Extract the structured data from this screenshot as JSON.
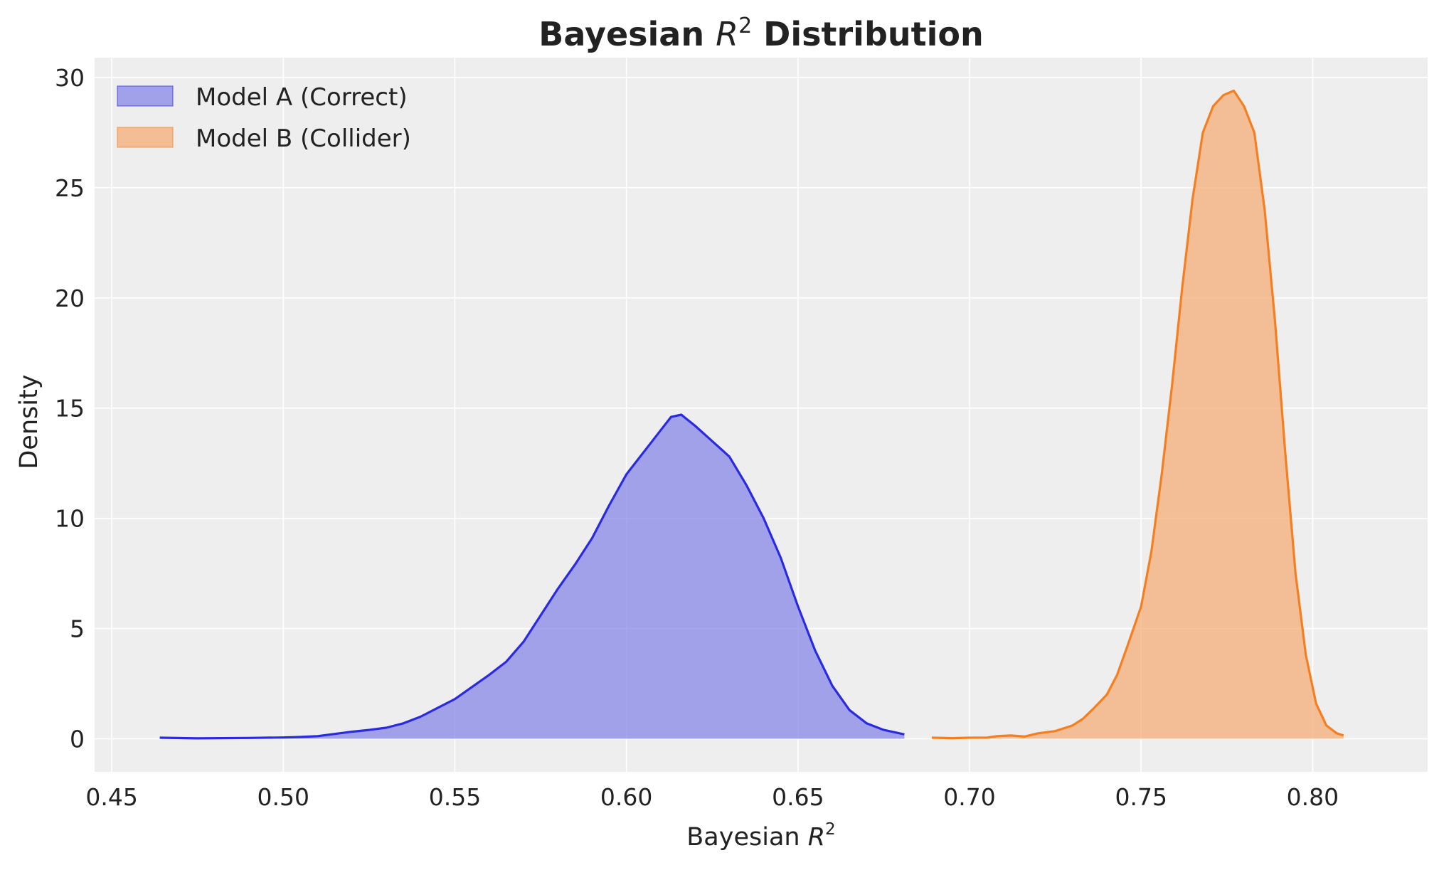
{
  "chart_data": {
    "type": "area",
    "title": {
      "main": "Bayesian ",
      "math_base": "R",
      "math_sup": "2",
      "suffix": " Distribution"
    },
    "xlabel": {
      "main": "Bayesian ",
      "math_base": "R",
      "math_sup": "2"
    },
    "ylabel": "Density",
    "xlim": [
      0.445,
      0.8335
    ],
    "ylim": [
      -1.5,
      30.9
    ],
    "x_ticks": [
      0.45,
      0.5,
      0.55,
      0.6,
      0.65,
      0.7,
      0.75,
      0.8
    ],
    "x_tick_labels": [
      "0.45",
      "0.50",
      "0.55",
      "0.60",
      "0.65",
      "0.70",
      "0.75",
      "0.80"
    ],
    "y_ticks": [
      0,
      5,
      10,
      15,
      20,
      25,
      30
    ],
    "y_tick_labels": [
      "0",
      "5",
      "10",
      "15",
      "20",
      "25",
      "30"
    ],
    "grid": true,
    "legend_position": "top-left",
    "background_color": "#eeeeee",
    "series": [
      {
        "name": "Model A (Correct)",
        "line_color": "#2a2ae0",
        "fill_color": "#7c7ce6",
        "fill_opacity": 0.68,
        "points": [
          [
            0.464,
            0.05
          ],
          [
            0.475,
            0.02
          ],
          [
            0.49,
            0.04
          ],
          [
            0.5,
            0.06
          ],
          [
            0.505,
            0.08
          ],
          [
            0.51,
            0.12
          ],
          [
            0.515,
            0.22
          ],
          [
            0.52,
            0.32
          ],
          [
            0.525,
            0.4
          ],
          [
            0.53,
            0.5
          ],
          [
            0.535,
            0.7
          ],
          [
            0.54,
            1.0
          ],
          [
            0.545,
            1.4
          ],
          [
            0.55,
            1.8
          ],
          [
            0.555,
            2.35
          ],
          [
            0.56,
            2.9
          ],
          [
            0.565,
            3.5
          ],
          [
            0.57,
            4.4
          ],
          [
            0.575,
            5.6
          ],
          [
            0.58,
            6.8
          ],
          [
            0.585,
            7.9
          ],
          [
            0.59,
            9.1
          ],
          [
            0.595,
            10.6
          ],
          [
            0.6,
            12.0
          ],
          [
            0.605,
            13.0
          ],
          [
            0.61,
            14.0
          ],
          [
            0.613,
            14.6
          ],
          [
            0.616,
            14.7
          ],
          [
            0.62,
            14.2
          ],
          [
            0.625,
            13.5
          ],
          [
            0.63,
            12.8
          ],
          [
            0.635,
            11.5
          ],
          [
            0.64,
            10.0
          ],
          [
            0.645,
            8.2
          ],
          [
            0.65,
            6.0
          ],
          [
            0.655,
            4.0
          ],
          [
            0.66,
            2.4
          ],
          [
            0.665,
            1.3
          ],
          [
            0.67,
            0.7
          ],
          [
            0.675,
            0.4
          ],
          [
            0.681,
            0.2
          ]
        ]
      },
      {
        "name": "Model B (Collider)",
        "line_color": "#f57f20",
        "fill_color": "#f5a970",
        "fill_opacity": 0.7,
        "points": [
          [
            0.689,
            0.05
          ],
          [
            0.695,
            0.03
          ],
          [
            0.7,
            0.05
          ],
          [
            0.705,
            0.05
          ],
          [
            0.708,
            0.12
          ],
          [
            0.712,
            0.15
          ],
          [
            0.716,
            0.1
          ],
          [
            0.72,
            0.25
          ],
          [
            0.725,
            0.35
          ],
          [
            0.73,
            0.6
          ],
          [
            0.733,
            0.9
          ],
          [
            0.736,
            1.35
          ],
          [
            0.74,
            2.0
          ],
          [
            0.743,
            2.9
          ],
          [
            0.746,
            4.2
          ],
          [
            0.75,
            6.0
          ],
          [
            0.753,
            8.5
          ],
          [
            0.756,
            12.0
          ],
          [
            0.759,
            16.0
          ],
          [
            0.762,
            20.5
          ],
          [
            0.765,
            24.5
          ],
          [
            0.768,
            27.5
          ],
          [
            0.771,
            28.7
          ],
          [
            0.774,
            29.2
          ],
          [
            0.777,
            29.4
          ],
          [
            0.78,
            28.7
          ],
          [
            0.783,
            27.5
          ],
          [
            0.786,
            24.0
          ],
          [
            0.789,
            19.0
          ],
          [
            0.792,
            13.0
          ],
          [
            0.795,
            7.5
          ],
          [
            0.798,
            3.8
          ],
          [
            0.801,
            1.6
          ],
          [
            0.804,
            0.6
          ],
          [
            0.807,
            0.25
          ],
          [
            0.809,
            0.15
          ]
        ]
      }
    ]
  }
}
